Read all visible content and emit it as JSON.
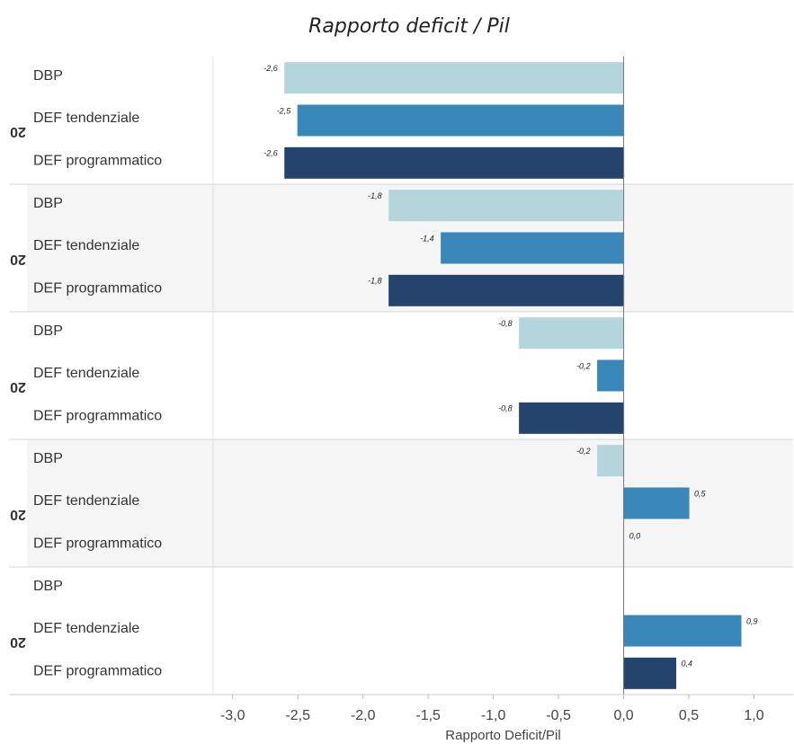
{
  "chart_data": {
    "type": "bar",
    "orientation": "horizontal",
    "title": "Rapporto deficit / Pil",
    "x_label": "Rapporto Deficit/Pil",
    "groups": [
      "20",
      "20",
      "20",
      "20",
      "20"
    ],
    "categories": [
      "DBP",
      "DEF tendenziale",
      "DEF programmatico"
    ],
    "colors": [
      "#b5d5dc",
      "#3a87b9",
      "#24446e"
    ],
    "values": [
      [
        -2.6,
        -2.5,
        -2.6
      ],
      [
        -1.8,
        -1.4,
        -1.8
      ],
      [
        -0.8,
        -0.2,
        -0.8
      ],
      [
        -0.2,
        0.5,
        0.0
      ],
      [
        null,
        0.9,
        0.4
      ]
    ],
    "value_labels": [
      [
        "-2,6",
        "-2,5",
        "-2,6"
      ],
      [
        "-1,8",
        "-1,4",
        "-1,8"
      ],
      [
        "-0,8",
        "-0,2",
        "-0,8"
      ],
      [
        "-0,2",
        "0,5",
        "0,0"
      ],
      [
        null,
        "0,9",
        "0,4"
      ]
    ],
    "xlim": [
      -3.15,
      1.3
    ],
    "xticks": [
      {
        "value": -3,
        "label": "-3,0"
      },
      {
        "value": -2.5,
        "label": "-2,5"
      },
      {
        "value": -2,
        "label": "-2,0"
      },
      {
        "value": -1.5,
        "label": "-1,5"
      },
      {
        "value": -1,
        "label": "-1,0"
      },
      {
        "value": -0.5,
        "label": "-0,5"
      },
      {
        "value": 0,
        "label": "0,0"
      },
      {
        "value": 0.5,
        "label": "0,5"
      },
      {
        "value": 1,
        "label": "1,0"
      }
    ],
    "shaded_alternate_groups": true
  }
}
